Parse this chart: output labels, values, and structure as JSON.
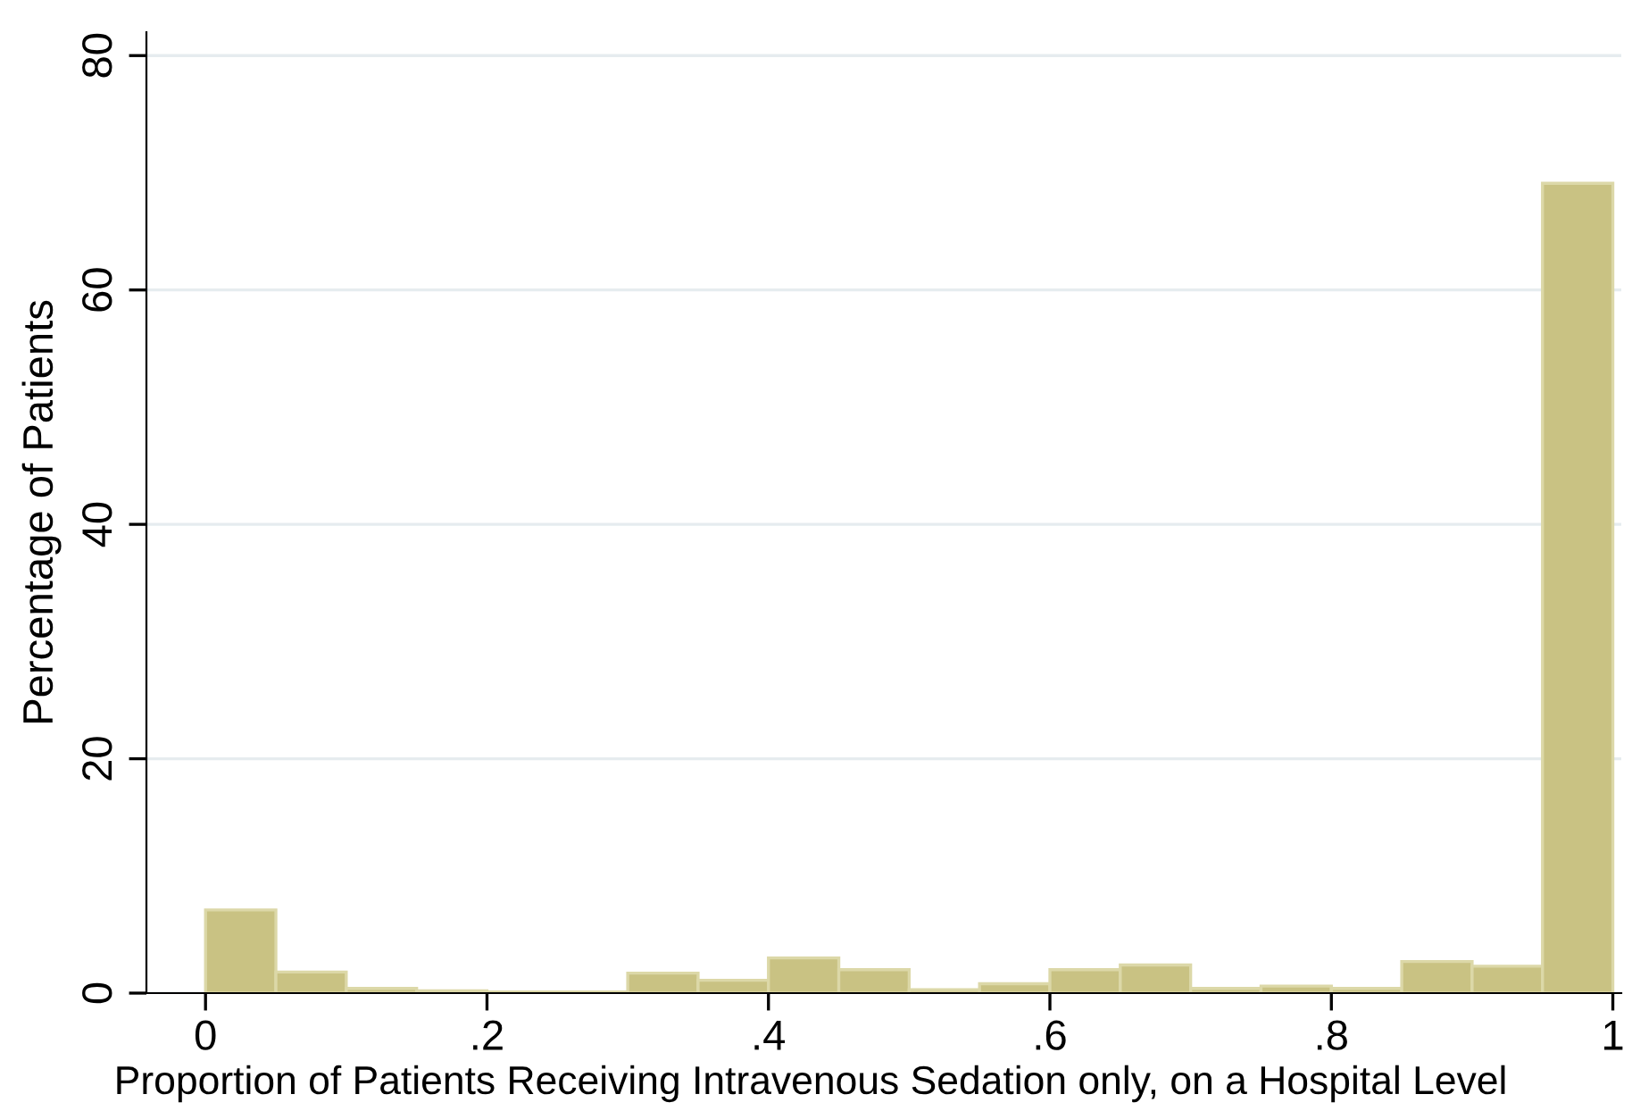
{
  "chart_data": {
    "type": "histogram",
    "xlabel": "Proportion of Patients Receiving Intravenous Sedation only, on a Hospital Level",
    "ylabel": "Percentage of Patients",
    "bins": [
      0,
      0.05,
      0.1,
      0.15,
      0.2,
      0.25,
      0.3,
      0.35,
      0.4,
      0.45,
      0.5,
      0.55,
      0.6,
      0.65,
      0.7,
      0.75,
      0.8,
      0.85,
      0.9,
      0.95,
      1
    ],
    "values": [
      7.1,
      1.8,
      0.4,
      0.2,
      0.1,
      0.1,
      1.7,
      1.1,
      3.0,
      2.0,
      0.3,
      0.8,
      2.0,
      2.4,
      0.4,
      0.6,
      0.4,
      2.7,
      2.3,
      69.1
    ],
    "color": "#c9c283",
    "xlim": [
      -0.042,
      1.006
    ],
    "ylim": [
      0,
      82
    ],
    "xticks": [
      {
        "value": 0,
        "label": "0"
      },
      {
        "value": 0.2,
        "label": ".2"
      },
      {
        "value": 0.4,
        "label": ".4"
      },
      {
        "value": 0.6,
        "label": ".6"
      },
      {
        "value": 0.8,
        "label": ".8"
      },
      {
        "value": 1,
        "label": "1"
      }
    ],
    "yticks": [
      0,
      20,
      40,
      60,
      80
    ],
    "grid": "y"
  }
}
